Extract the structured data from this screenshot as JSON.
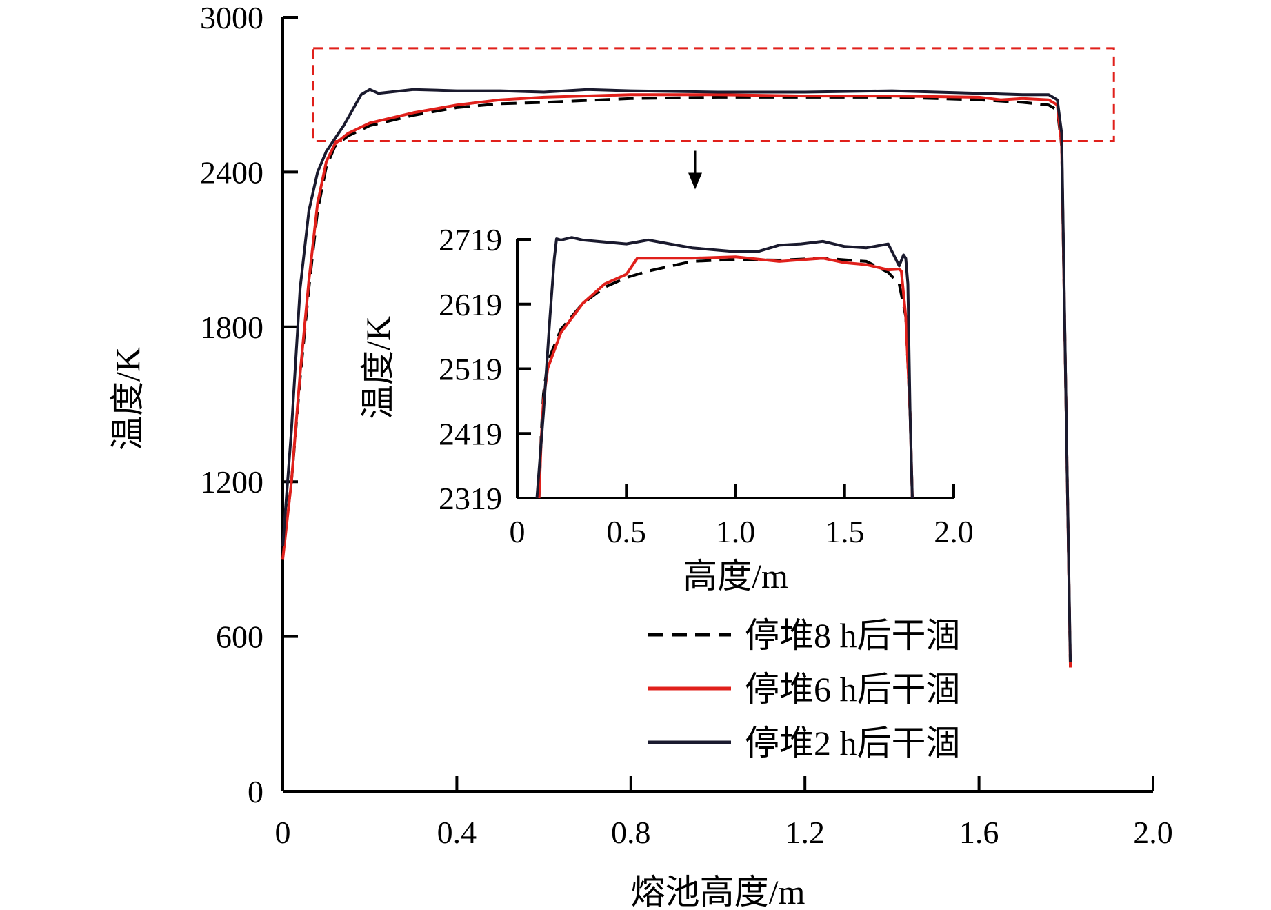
{
  "chart_data": {
    "type": "line",
    "xlabel": "熔池高度/m",
    "ylabel": "温度/K",
    "xlim": [
      0,
      2.0
    ],
    "ylim": [
      0,
      3000
    ],
    "xticks": [
      "0",
      "0.4",
      "0.8",
      "1.2",
      "1.6",
      "2.0"
    ],
    "yticks": [
      "0",
      "600",
      "1200",
      "1800",
      "2400",
      "3000"
    ],
    "legend_position": "bottom-right",
    "highlight_box": {
      "x": [
        0.07,
        1.91
      ],
      "y": [
        2520,
        2880
      ]
    },
    "series": [
      {
        "name": "停堆8 h后干涸",
        "color": "#000000",
        "style": "dashed",
        "x": [
          0.0,
          0.02,
          0.04,
          0.06,
          0.08,
          0.1,
          0.12,
          0.15,
          0.2,
          0.3,
          0.4,
          0.5,
          0.6,
          0.8,
          1.0,
          1.2,
          1.4,
          1.6,
          1.7,
          1.76,
          1.78,
          1.79,
          1.8,
          1.81
        ],
        "y": [
          920,
          1200,
          1600,
          1950,
          2250,
          2420,
          2500,
          2540,
          2580,
          2620,
          2650,
          2665,
          2670,
          2685,
          2690,
          2690,
          2690,
          2680,
          2670,
          2660,
          2640,
          2500,
          1500,
          480
        ]
      },
      {
        "name": "停堆6 h后干涸",
        "color": "#e0201b",
        "style": "solid",
        "x": [
          0.0,
          0.02,
          0.04,
          0.06,
          0.08,
          0.1,
          0.12,
          0.15,
          0.2,
          0.3,
          0.4,
          0.5,
          0.6,
          0.8,
          1.0,
          1.2,
          1.4,
          1.6,
          1.65,
          1.7,
          1.76,
          1.78,
          1.79,
          1.8,
          1.81
        ],
        "y": [
          900,
          1200,
          1620,
          1980,
          2280,
          2440,
          2510,
          2550,
          2590,
          2630,
          2660,
          2680,
          2690,
          2700,
          2700,
          2695,
          2695,
          2690,
          2680,
          2685,
          2680,
          2660,
          2500,
          1500,
          480
        ]
      },
      {
        "name": "停堆2 h后干涸",
        "color": "#1a1a2e",
        "style": "solid",
        "x": [
          0.0,
          0.02,
          0.04,
          0.06,
          0.08,
          0.1,
          0.12,
          0.14,
          0.16,
          0.18,
          0.2,
          0.22,
          0.3,
          0.4,
          0.5,
          0.6,
          0.7,
          0.8,
          1.0,
          1.2,
          1.4,
          1.6,
          1.7,
          1.76,
          1.78,
          1.79,
          1.8,
          1.81
        ],
        "y": [
          950,
          1400,
          1950,
          2250,
          2400,
          2480,
          2530,
          2580,
          2640,
          2700,
          2720,
          2705,
          2720,
          2715,
          2715,
          2710,
          2720,
          2715,
          2710,
          2710,
          2715,
          2705,
          2700,
          2700,
          2680,
          2550,
          1500,
          500
        ]
      }
    ],
    "inset": {
      "xlabel": "高度/m",
      "ylabel": "温度/K",
      "xlim": [
        0,
        2.0
      ],
      "ylim": [
        2319,
        2719
      ],
      "xticks": [
        "0",
        "0.5",
        "1.0",
        "1.5",
        "2.0"
      ],
      "yticks": [
        "2319",
        "2419",
        "2519",
        "2619",
        "2719"
      ],
      "series": [
        {
          "name": "停堆8 h后干涸",
          "x": [
            0.1,
            0.11,
            0.12,
            0.14,
            0.2,
            0.3,
            0.4,
            0.5,
            0.6,
            0.8,
            1.0,
            1.2,
            1.4,
            1.6,
            1.7,
            1.75,
            1.78,
            1.8,
            1.81
          ],
          "y": [
            2319,
            2420,
            2480,
            2530,
            2580,
            2620,
            2645,
            2660,
            2670,
            2685,
            2688,
            2687,
            2690,
            2685,
            2668,
            2650,
            2600,
            2450,
            2319
          ]
        },
        {
          "name": "停堆6 h后干涸",
          "x": [
            0.1,
            0.11,
            0.12,
            0.14,
            0.2,
            0.3,
            0.4,
            0.5,
            0.55,
            0.6,
            0.8,
            1.0,
            1.2,
            1.4,
            1.5,
            1.6,
            1.7,
            1.75,
            1.76,
            1.78,
            1.8,
            1.81
          ],
          "y": [
            2319,
            2410,
            2470,
            2520,
            2575,
            2620,
            2650,
            2665,
            2690,
            2690,
            2690,
            2692,
            2685,
            2690,
            2683,
            2680,
            2672,
            2673,
            2670,
            2600,
            2450,
            2319
          ]
        },
        {
          "name": "停堆2 h后干涸",
          "x": [
            0.09,
            0.12,
            0.15,
            0.17,
            0.18,
            0.2,
            0.25,
            0.3,
            0.4,
            0.5,
            0.6,
            0.7,
            0.8,
            1.0,
            1.1,
            1.2,
            1.3,
            1.4,
            1.5,
            1.6,
            1.7,
            1.75,
            1.77,
            1.78,
            1.79,
            1.8,
            1.81
          ],
          "y": [
            2319,
            2450,
            2600,
            2690,
            2720,
            2718,
            2722,
            2718,
            2715,
            2712,
            2718,
            2712,
            2706,
            2700,
            2700,
            2710,
            2712,
            2716,
            2708,
            2706,
            2712,
            2678,
            2695,
            2690,
            2650,
            2450,
            2319
          ]
        }
      ]
    }
  }
}
